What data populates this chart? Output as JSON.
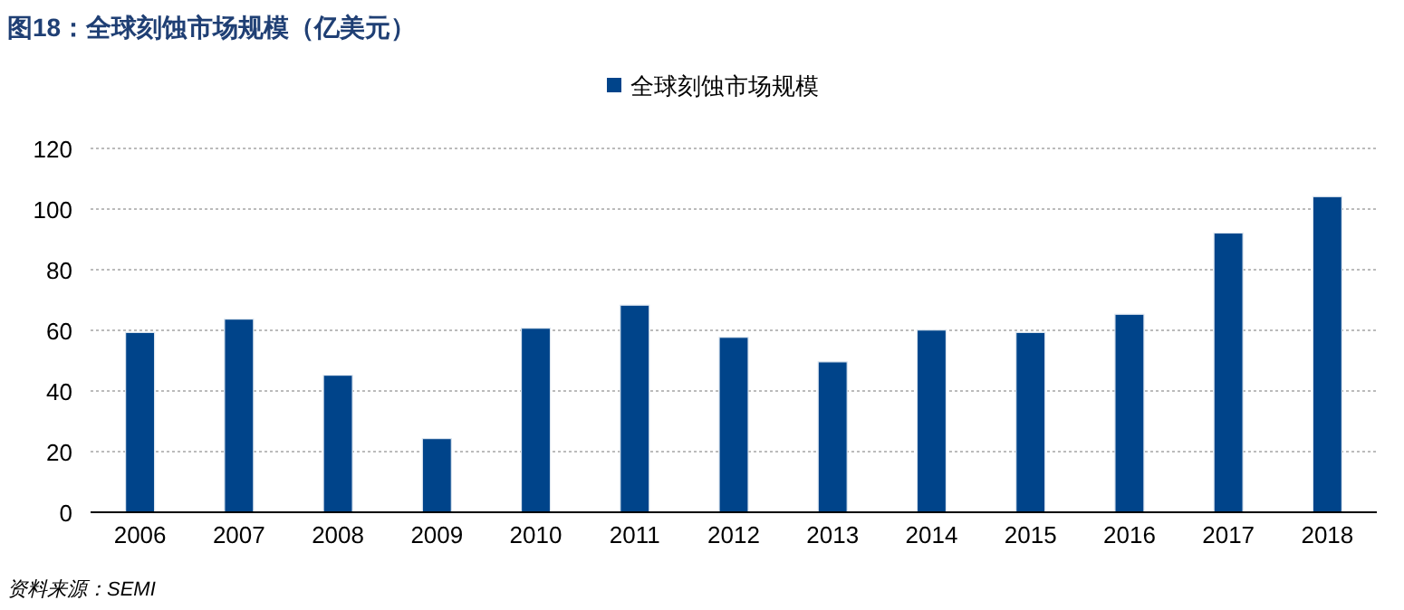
{
  "chart_data": {
    "type": "bar",
    "title": "图18：全球刻蚀市场规模（亿美元）",
    "categories": [
      "2006",
      "2007",
      "2008",
      "2009",
      "2010",
      "2011",
      "2012",
      "2013",
      "2014",
      "2015",
      "2016",
      "2017",
      "2018"
    ],
    "series": [
      {
        "name": "全球刻蚀市场规模",
        "color": "#00448a",
        "values": [
          59.3,
          63.7,
          45.2,
          24.3,
          60.7,
          68.3,
          57.7,
          49.6,
          60.1,
          59.3,
          65.3,
          92.1,
          104.1
        ]
      }
    ],
    "ylim": [
      0,
      120
    ],
    "yticks": [
      0,
      20,
      40,
      60,
      80,
      100,
      120
    ],
    "grid": "y",
    "legend": "top",
    "annotations": [
      "资料来源：SEMI"
    ]
  }
}
